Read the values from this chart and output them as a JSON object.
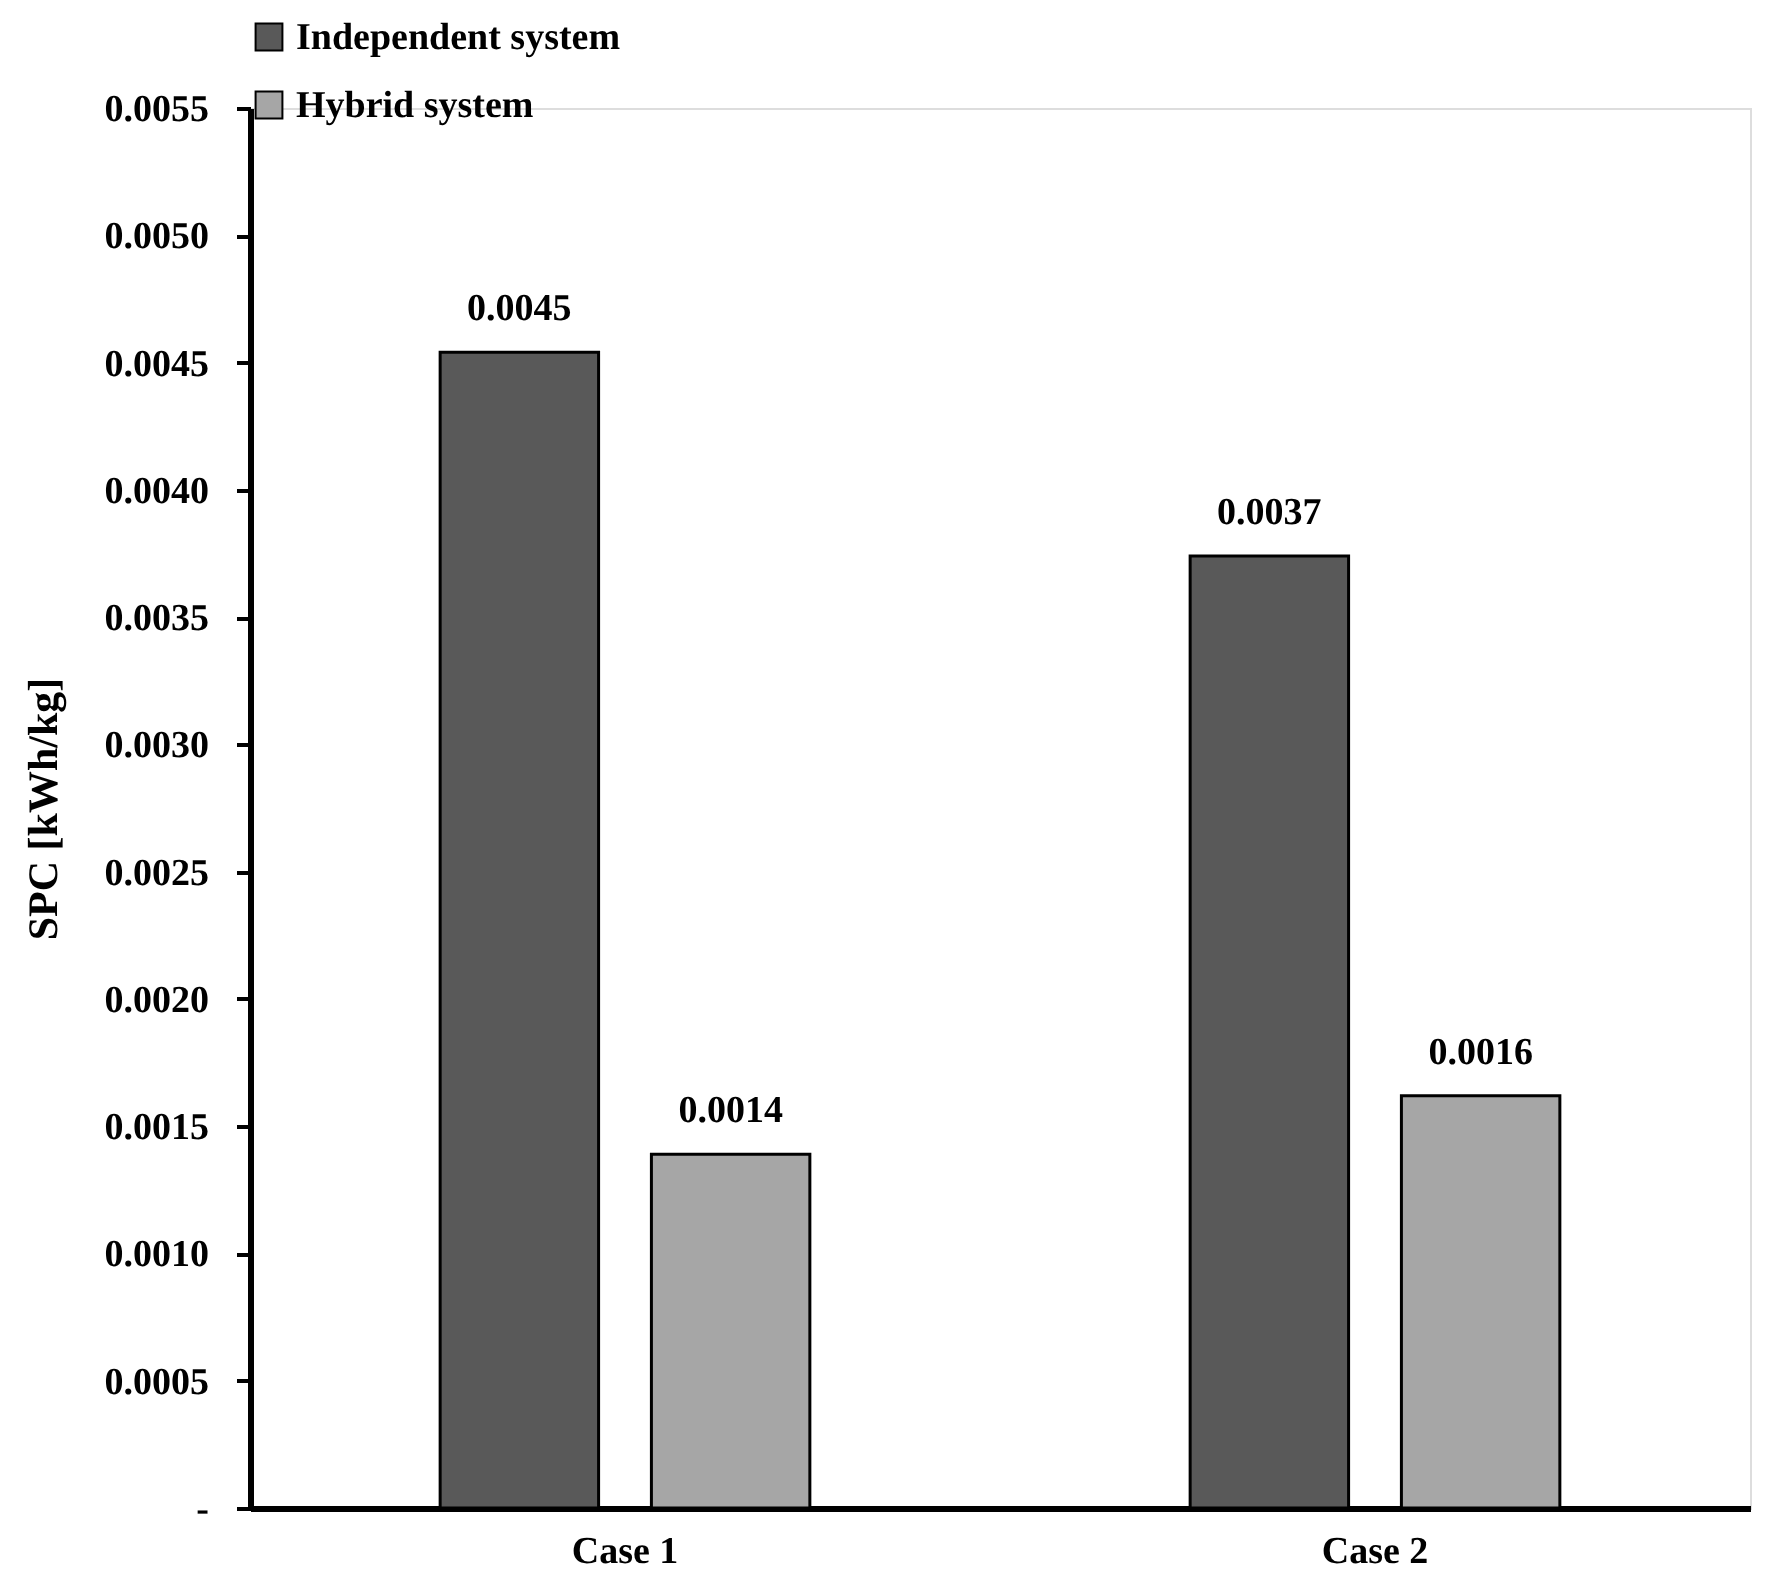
{
  "chart_data": {
    "type": "bar",
    "ylabel": "SPC [kWh/kg]",
    "categories": [
      "Case 1",
      "Case 2"
    ],
    "series": [
      {
        "name": "Independent system",
        "color": "#595959",
        "values": [
          0.00454,
          0.00374
        ],
        "value_labels": [
          "0.0045",
          "0.0037"
        ]
      },
      {
        "name": "Hybrid system",
        "color": "#a6a6a6",
        "values": [
          0.00139,
          0.00162
        ],
        "value_labels": [
          "0.0014",
          "0.0016"
        ]
      }
    ],
    "ylim": [
      0,
      0.0055
    ],
    "yticks": [
      {
        "value": 0,
        "label": "-"
      },
      {
        "value": 0.0005,
        "label": "0.0005"
      },
      {
        "value": 0.001,
        "label": "0.0010"
      },
      {
        "value": 0.0015,
        "label": "0.0015"
      },
      {
        "value": 0.002,
        "label": "0.0020"
      },
      {
        "value": 0.0025,
        "label": "0.0025"
      },
      {
        "value": 0.003,
        "label": "0.0030"
      },
      {
        "value": 0.0035,
        "label": "0.0035"
      },
      {
        "value": 0.004,
        "label": "0.0040"
      },
      {
        "value": 0.0045,
        "label": "0.0045"
      },
      {
        "value": 0.005,
        "label": "0.0050"
      },
      {
        "value": 0.0055,
        "label": "0.0055"
      }
    ],
    "grid": false,
    "legend": "top left"
  }
}
